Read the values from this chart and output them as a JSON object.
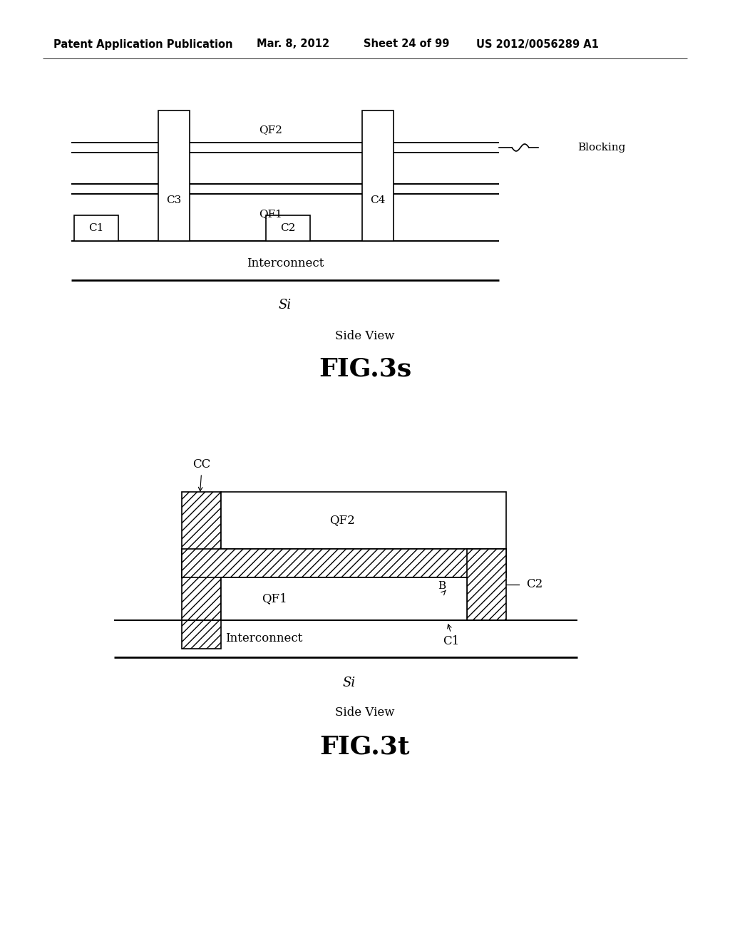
{
  "bg_color": "#ffffff",
  "header_text": "Patent Application Publication",
  "header_date": "Mar. 8, 2012",
  "header_sheet": "Sheet 24 of 99",
  "header_patent": "US 2012/0056289 A1",
  "fig3s_title": "Side View",
  "fig3s_label": "FIG.3s",
  "fig3t_title": "Side View",
  "fig3t_label": "FIG.3t"
}
